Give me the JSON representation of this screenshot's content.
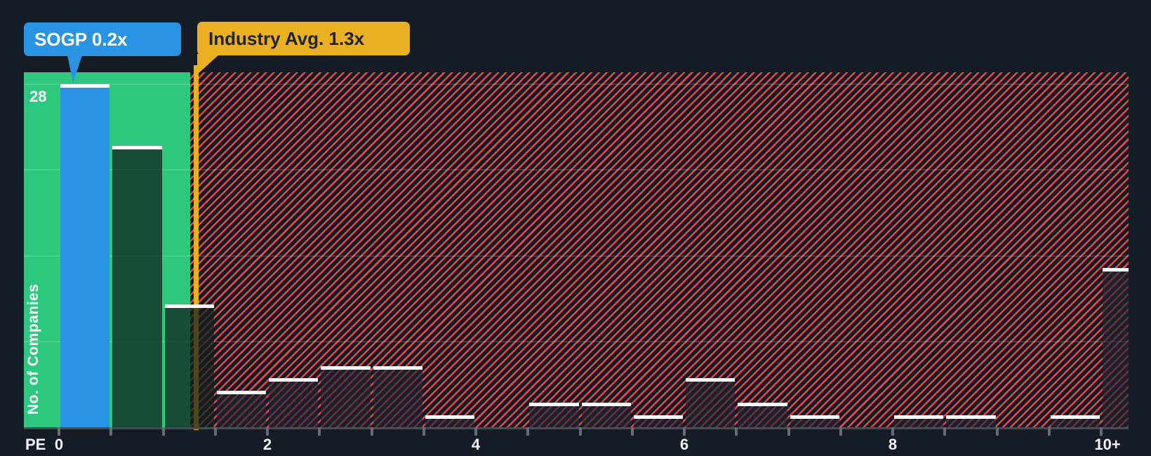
{
  "chart_data": {
    "type": "bar",
    "xlabel": "PE",
    "ylabel": "No. of Companies",
    "x_axis": {
      "min": 0,
      "max": 10,
      "tick_step": 0.5,
      "labels": [
        {
          "value": 0,
          "text": "0"
        },
        {
          "value": 2,
          "text": "2"
        },
        {
          "value": 4,
          "text": "4"
        },
        {
          "value": 6,
          "text": "6"
        },
        {
          "value": 8,
          "text": "8"
        },
        {
          "value": 10,
          "text": "10+"
        }
      ]
    },
    "y_axis": {
      "top_label": "28",
      "max": 28,
      "gridline_counts": [
        7,
        14,
        21,
        28
      ]
    },
    "markers": {
      "sogp": {
        "label": "SOGP 0.2x",
        "value": 0.2,
        "color": "#2994e4"
      },
      "industry": {
        "label": "Industry Avg. 1.3x",
        "value": 1.3,
        "color": "#eab021"
      }
    },
    "buckets": [
      {
        "start": 0.0,
        "end": 0.5,
        "count": 28,
        "role": "company"
      },
      {
        "start": 0.5,
        "end": 1.0,
        "count": 23
      },
      {
        "start": 1.0,
        "end": 1.5,
        "count": 10
      },
      {
        "start": 1.5,
        "end": 2.0,
        "count": 3
      },
      {
        "start": 2.0,
        "end": 2.5,
        "count": 4
      },
      {
        "start": 2.5,
        "end": 3.0,
        "count": 5
      },
      {
        "start": 3.0,
        "end": 3.5,
        "count": 5
      },
      {
        "start": 3.5,
        "end": 4.0,
        "count": 1
      },
      {
        "start": 4.0,
        "end": 4.5,
        "count": 0
      },
      {
        "start": 4.5,
        "end": 5.0,
        "count": 2
      },
      {
        "start": 5.0,
        "end": 5.5,
        "count": 2
      },
      {
        "start": 5.5,
        "end": 6.0,
        "count": 1
      },
      {
        "start": 6.0,
        "end": 6.5,
        "count": 4
      },
      {
        "start": 6.5,
        "end": 7.0,
        "count": 2
      },
      {
        "start": 7.0,
        "end": 7.5,
        "count": 1
      },
      {
        "start": 7.5,
        "end": 8.0,
        "count": 0
      },
      {
        "start": 8.0,
        "end": 8.5,
        "count": 1
      },
      {
        "start": 8.5,
        "end": 9.0,
        "count": 1
      },
      {
        "start": 9.0,
        "end": 9.5,
        "count": 0
      },
      {
        "start": 9.5,
        "end": 10.0,
        "count": 1
      },
      {
        "start": 10.0,
        "end": 10.26,
        "count": 13,
        "overflow": true
      }
    ],
    "colors": {
      "background": "#161c26",
      "below_average_zone": "#2dc87d",
      "hatch_red": "#e2494b",
      "company_bar": "#2994e4",
      "industry_marker": "#eab021",
      "bar_cap": "#ffffff"
    }
  }
}
